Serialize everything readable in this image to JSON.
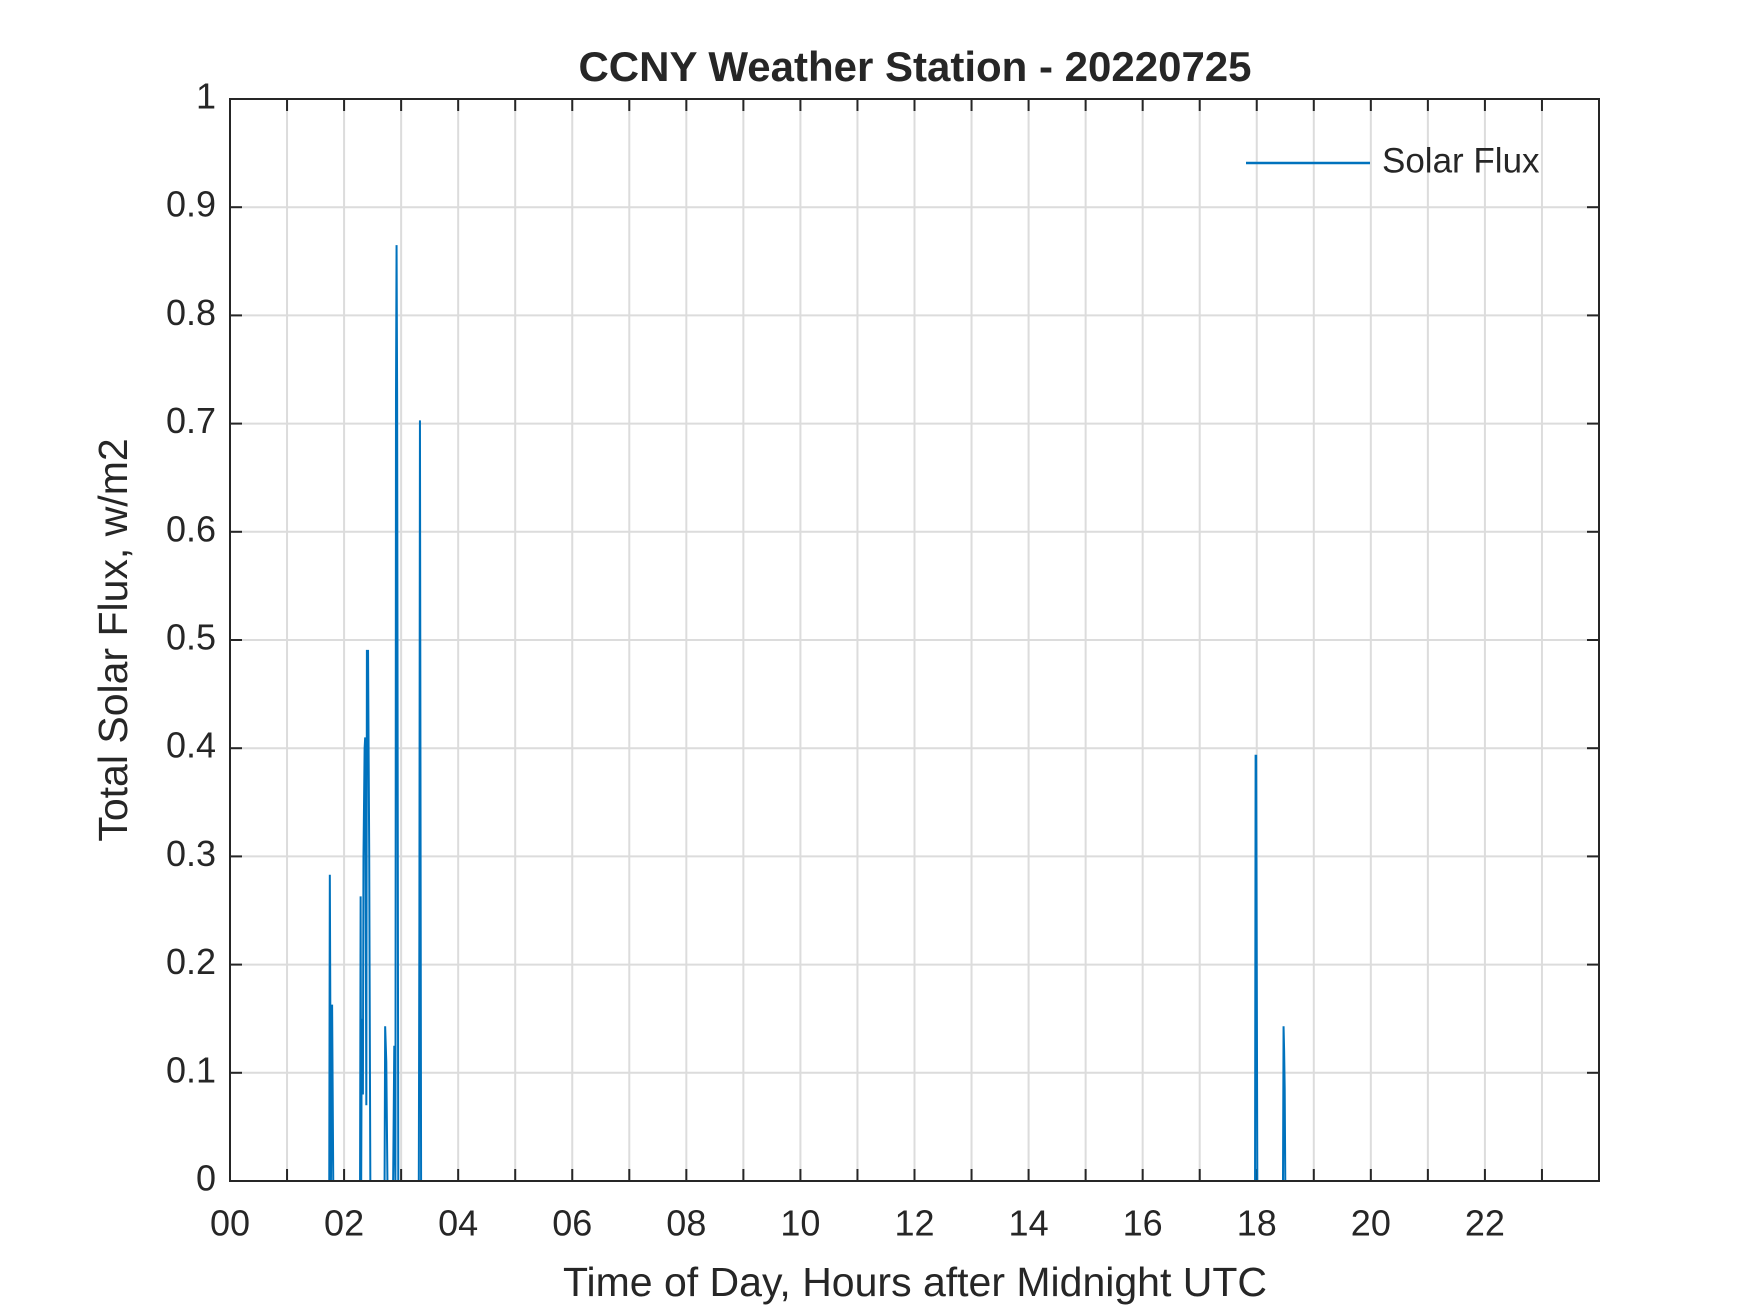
{
  "chart_data": {
    "type": "line",
    "title": "CCNY Weather Station - 20220725",
    "xlabel": "Time of Day, Hours after Midnight UTC",
    "ylabel": "Total Solar Flux, w/m2",
    "x": [
      0,
      1.74,
      1.75,
      1.77,
      1.79,
      1.81,
      2.28,
      2.29,
      2.3,
      2.31,
      2.33,
      2.34,
      2.36,
      2.37,
      2.39,
      2.4,
      2.42,
      2.44,
      2.46,
      2.71,
      2.72,
      2.74,
      2.76,
      2.86,
      2.88,
      2.9,
      2.91,
      2.92,
      2.93,
      2.95,
      3.31,
      3.32,
      3.33,
      3.35,
      17.97,
      17.98,
      17.99,
      18.01,
      18.46,
      18.47,
      18.48,
      18.49,
      18.5,
      24
    ],
    "series": [
      {
        "name": "Solar Flux",
        "color": "#0072bd",
        "values": [
          0,
          0,
          0.283,
          0,
          0.163,
          0,
          0,
          0.263,
          0,
          0.15,
          0.08,
          0.3,
          0.4,
          0.41,
          0.07,
          0.49,
          0.49,
          0.307,
          0,
          0,
          0.143,
          0.11,
          0,
          0,
          0.125,
          0,
          0.725,
          0.865,
          0.725,
          0,
          0,
          0.24,
          0.703,
          0,
          0,
          0.393,
          0.393,
          0,
          0,
          0.143,
          0.12,
          0.085,
          0,
          0
        ]
      }
    ],
    "xlim": [
      0,
      24
    ],
    "xticks": [
      {
        "value": 0,
        "label": "00"
      },
      {
        "value": 2,
        "label": "02"
      },
      {
        "value": 4,
        "label": "04"
      },
      {
        "value": 6,
        "label": "06"
      },
      {
        "value": 8,
        "label": "08"
      },
      {
        "value": 10,
        "label": "10"
      },
      {
        "value": 12,
        "label": "12"
      },
      {
        "value": 14,
        "label": "14"
      },
      {
        "value": 16,
        "label": "16"
      },
      {
        "value": 18,
        "label": "18"
      },
      {
        "value": 20,
        "label": "20"
      },
      {
        "value": 22,
        "label": "22"
      }
    ],
    "xminorticks": [
      1,
      3,
      5,
      7,
      9,
      11,
      13,
      15,
      17,
      19,
      21,
      23
    ],
    "ylim": [
      0,
      1
    ],
    "yticks": [
      0,
      0.1,
      0.2,
      0.3,
      0.4,
      0.5,
      0.6,
      0.7,
      0.8,
      0.9,
      1
    ],
    "grid": true,
    "legend": "northeast"
  }
}
